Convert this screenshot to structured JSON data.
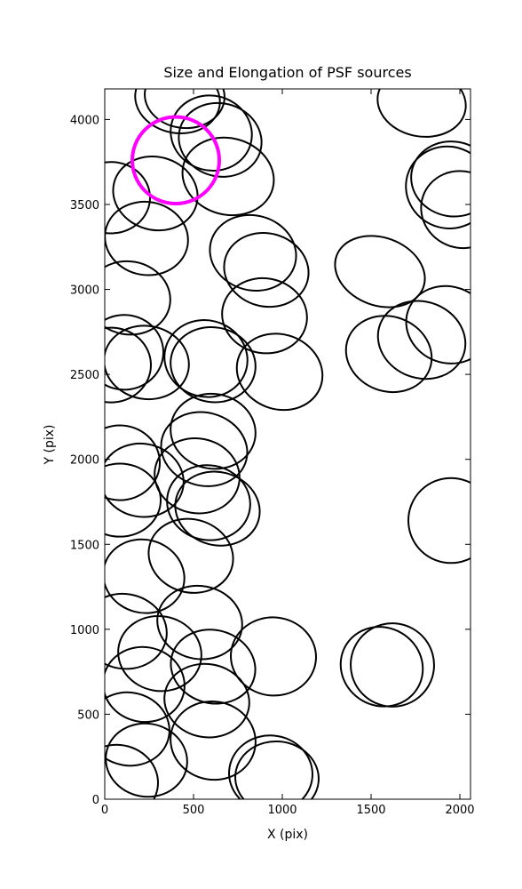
{
  "chart_data": {
    "type": "ellipse",
    "title": "Size and Elongation of PSF sources",
    "xlabel": "X (pix)",
    "ylabel": "Y (pix)",
    "xlim": [
      0,
      2060
    ],
    "ylim": [
      0,
      4180
    ],
    "xticks": [
      0,
      500,
      1000,
      1500,
      2000
    ],
    "yticks": [
      0,
      500,
      1000,
      1500,
      2000,
      2500,
      3000,
      3500,
      4000
    ],
    "series": [
      {
        "color": "#000000",
        "x": [
          410,
          600,
          650,
          450,
          695,
          285,
          35,
          235,
          835,
          910,
          1550,
          135,
          900,
          1935,
          1785,
          1600,
          985,
          610,
          570,
          235,
          110,
          35,
          610,
          560,
          520,
          210,
          85,
          85,
          585,
          635,
          1950,
          485,
          220,
          110,
          535,
          310,
          610,
          950,
          1560,
          1620,
          220,
          575,
          135,
          610,
          235,
          70,
          935,
          970,
          1935,
          2010,
          1960,
          1785
        ],
        "y": [
          4120,
          3920,
          3880,
          4140,
          3665,
          3565,
          3540,
          3300,
          3215,
          3115,
          3105,
          2950,
          2845,
          2792,
          2703,
          2620,
          2515,
          2557,
          2593,
          2570,
          2630,
          2555,
          2165,
          2060,
          1903,
          1877,
          1980,
          1760,
          1745,
          1710,
          1640,
          1432,
          1312,
          988,
          1040,
          857,
          780,
          840,
          780,
          790,
          675,
          580,
          413,
          345,
          230,
          100,
          150,
          125,
          3600,
          3470,
          3650,
          4100
        ],
        "width": [
          480,
          460,
          470,
          450,
          520,
          480,
          440,
          470,
          490,
          480,
          520,
          470,
          480,
          480,
          500,
          490,
          490,
          480,
          470,
          480,
          440,
          450,
          480,
          490,
          480,
          470,
          450,
          460,
          470,
          480,
          480,
          480,
          460,
          480,
          480,
          470,
          480,
          480,
          470,
          470,
          460,
          480,
          460,
          480,
          460,
          460,
          470,
          470,
          480,
          460,
          470,
          500
        ],
        "height": [
          400,
          440,
          430,
          380,
          450,
          430,
          420,
          430,
          440,
          430,
          400,
          430,
          440,
          450,
          450,
          440,
          440,
          440,
          450,
          430,
          440,
          440,
          440,
          430,
          440,
          430,
          440,
          430,
          440,
          430,
          500,
          430,
          430,
          440,
          430,
          440,
          430,
          460,
          460,
          490,
          440,
          430,
          430,
          460,
          430,
          440,
          450,
          430,
          480,
          450,
          440,
          400
        ],
        "angle": [
          -10,
          -15,
          -15,
          -5,
          -15,
          -15,
          0,
          -10,
          -15,
          -15,
          -20,
          -10,
          -10,
          -20,
          -20,
          -20,
          -20,
          -10,
          -15,
          -10,
          0,
          0,
          -10,
          -15,
          -10,
          -10,
          0,
          0,
          -10,
          -15,
          0,
          -15,
          -15,
          -10,
          -10,
          -10,
          -15,
          -5,
          -30,
          -30,
          -10,
          -10,
          -10,
          -10,
          -10,
          -5,
          -5,
          -5,
          -20,
          -20,
          -10,
          -10
        ]
      }
    ],
    "highlight": {
      "color": "#ff00ff",
      "x": 400,
      "y": 3760,
      "width": 490,
      "height": 510
    }
  }
}
